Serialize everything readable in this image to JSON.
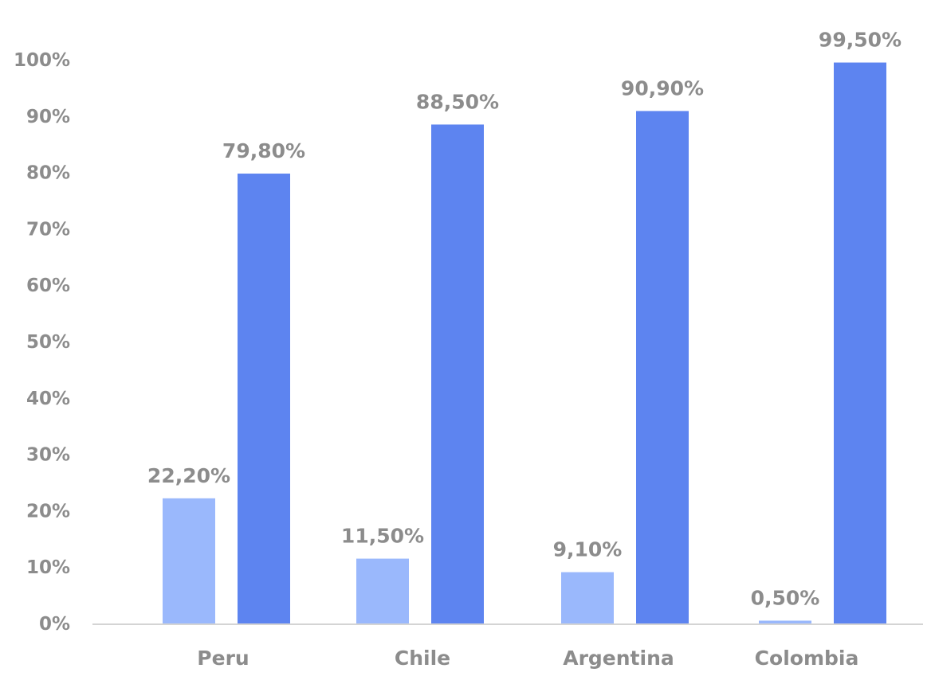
{
  "chart_data": {
    "type": "bar",
    "categories": [
      "Peru",
      "Chile",
      "Argentina",
      "Colombia"
    ],
    "series": [
      {
        "values": [
          22.2,
          11.5,
          9.1,
          0.5
        ],
        "labels": [
          "22,20%",
          "11,50%",
          "9,10%",
          "0,50%"
        ],
        "color": "#9ab8fc"
      },
      {
        "values": [
          79.8,
          88.5,
          90.9,
          99.5
        ],
        "labels": [
          "79,80%",
          "88,50%",
          "90,90%",
          "99,50%"
        ],
        "color": "#5d84f0"
      }
    ],
    "y_ticks": [
      0,
      10,
      20,
      30,
      40,
      50,
      60,
      70,
      80,
      90,
      100
    ],
    "y_tick_labels": [
      "0%",
      "10%",
      "20%",
      "30%",
      "40%",
      "50%",
      "60%",
      "70%",
      "80%",
      "90%",
      "100%"
    ],
    "ylim": [
      0,
      100
    ],
    "grid": false,
    "legend": "none",
    "colors": {
      "label_text": "#8c8c8c",
      "axis_line": "#d4d4d4"
    }
  }
}
